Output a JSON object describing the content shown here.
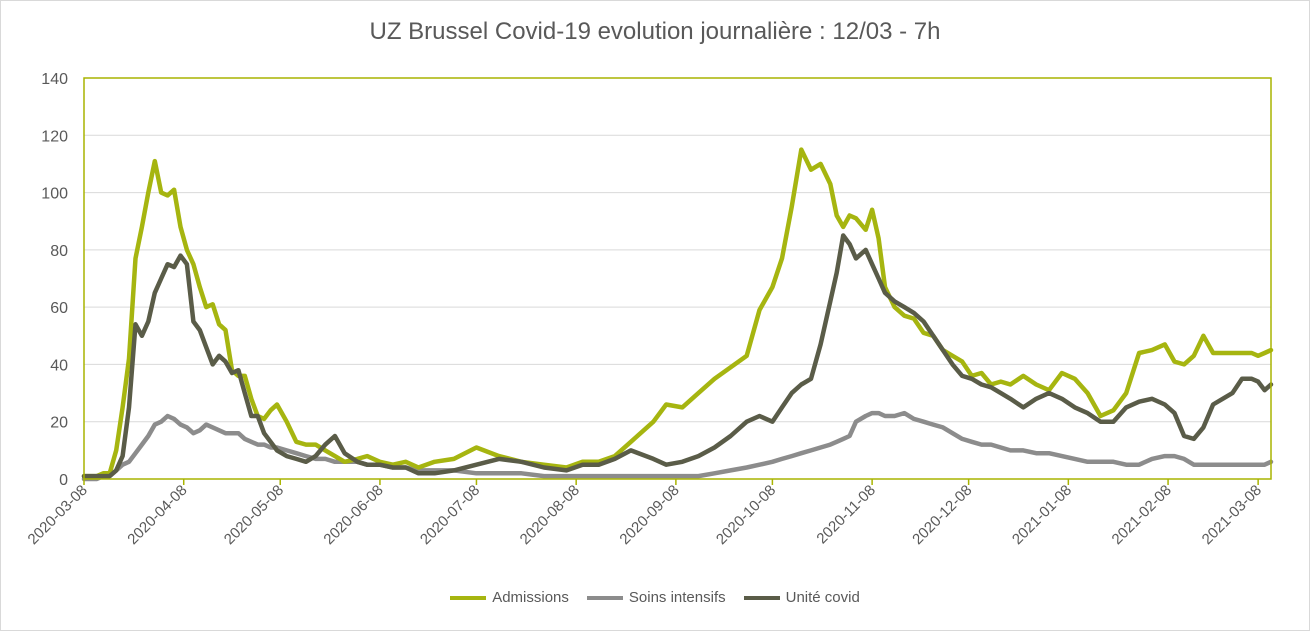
{
  "chart_data": {
    "type": "line",
    "title": "UZ Brussel Covid-19 evolution journalière : 12/03 - 7h",
    "xlabel": "",
    "ylabel": "",
    "ylim": [
      0,
      140
    ],
    "y_ticks": [
      0,
      20,
      40,
      60,
      80,
      100,
      120,
      140
    ],
    "xlim": [
      "2020-03-08",
      "2021-03-12"
    ],
    "x_ticks": [
      "2020-03-08",
      "2020-04-08",
      "2020-05-08",
      "2020-06-08",
      "2020-07-08",
      "2020-08-08",
      "2020-09-08",
      "2020-10-08",
      "2020-11-08",
      "2020-12-08",
      "2021-01-08",
      "2021-02-08",
      "2021-03-08"
    ],
    "grid": "horizontal",
    "legend_position": "bottom",
    "axis_color": "#a9b400",
    "series": [
      {
        "name": "Admissions",
        "color": "#a6b510",
        "x": [
          "2020-03-08",
          "2020-03-12",
          "2020-03-14",
          "2020-03-16",
          "2020-03-18",
          "2020-03-20",
          "2020-03-22",
          "2020-03-24",
          "2020-03-26",
          "2020-03-28",
          "2020-03-30",
          "2020-04-01",
          "2020-04-03",
          "2020-04-05",
          "2020-04-07",
          "2020-04-09",
          "2020-04-11",
          "2020-04-13",
          "2020-04-15",
          "2020-04-17",
          "2020-04-19",
          "2020-04-21",
          "2020-04-23",
          "2020-04-25",
          "2020-04-27",
          "2020-04-29",
          "2020-05-01",
          "2020-05-03",
          "2020-05-05",
          "2020-05-07",
          "2020-05-10",
          "2020-05-13",
          "2020-05-16",
          "2020-05-19",
          "2020-05-22",
          "2020-05-25",
          "2020-05-28",
          "2020-06-01",
          "2020-06-04",
          "2020-06-08",
          "2020-06-12",
          "2020-06-16",
          "2020-06-20",
          "2020-06-25",
          "2020-07-01",
          "2020-07-08",
          "2020-07-15",
          "2020-07-22",
          "2020-07-29",
          "2020-08-05",
          "2020-08-10",
          "2020-08-15",
          "2020-08-20",
          "2020-08-25",
          "2020-09-01",
          "2020-09-05",
          "2020-09-10",
          "2020-09-15",
          "2020-09-20",
          "2020-09-25",
          "2020-09-30",
          "2020-10-04",
          "2020-10-08",
          "2020-10-11",
          "2020-10-14",
          "2020-10-17",
          "2020-10-20",
          "2020-10-23",
          "2020-10-26",
          "2020-10-28",
          "2020-10-30",
          "2020-11-01",
          "2020-11-03",
          "2020-11-06",
          "2020-11-08",
          "2020-11-10",
          "2020-11-12",
          "2020-11-15",
          "2020-11-18",
          "2020-11-21",
          "2020-11-24",
          "2020-11-27",
          "2020-11-30",
          "2020-12-03",
          "2020-12-06",
          "2020-12-09",
          "2020-12-12",
          "2020-12-15",
          "2020-12-18",
          "2020-12-21",
          "2020-12-25",
          "2020-12-29",
          "2021-01-02",
          "2021-01-06",
          "2021-01-10",
          "2021-01-14",
          "2021-01-18",
          "2021-01-22",
          "2021-01-26",
          "2021-01-30",
          "2021-02-03",
          "2021-02-07",
          "2021-02-10",
          "2021-02-13",
          "2021-02-16",
          "2021-02-19",
          "2021-02-22",
          "2021-02-25",
          "2021-02-28",
          "2021-03-03",
          "2021-03-06",
          "2021-03-08",
          "2021-03-10",
          "2021-03-12"
        ],
        "values": [
          1,
          1,
          2,
          2,
          10,
          25,
          42,
          77,
          88,
          100,
          111,
          100,
          99,
          101,
          88,
          80,
          75,
          67,
          60,
          61,
          54,
          52,
          38,
          36,
          36,
          28,
          22,
          21,
          24,
          26,
          20,
          13,
          12,
          12,
          10,
          8,
          6,
          7,
          8,
          6,
          5,
          6,
          4,
          6,
          7,
          11,
          8,
          6,
          5,
          4,
          6,
          6,
          8,
          13,
          20,
          26,
          25,
          30,
          35,
          39,
          43,
          59,
          67,
          77,
          95,
          115,
          108,
          110,
          103,
          92,
          88,
          92,
          91,
          87,
          94,
          84,
          67,
          60,
          57,
          56,
          51,
          50,
          45,
          43,
          41,
          36,
          37,
          33,
          34,
          33,
          36,
          33,
          31,
          37,
          35,
          30,
          22,
          24,
          30,
          44,
          45,
          47,
          41,
          40,
          43,
          50,
          44,
          44,
          44,
          44,
          44,
          43,
          44,
          45
        ]
      },
      {
        "name": "Soins intensifs",
        "color": "#8c8c8c",
        "x": [
          "2020-03-08",
          "2020-03-12",
          "2020-03-14",
          "2020-03-16",
          "2020-03-18",
          "2020-03-20",
          "2020-03-22",
          "2020-03-24",
          "2020-03-26",
          "2020-03-28",
          "2020-03-30",
          "2020-04-01",
          "2020-04-03",
          "2020-04-05",
          "2020-04-07",
          "2020-04-09",
          "2020-04-11",
          "2020-04-13",
          "2020-04-15",
          "2020-04-17",
          "2020-04-19",
          "2020-04-21",
          "2020-04-23",
          "2020-04-25",
          "2020-04-27",
          "2020-04-29",
          "2020-05-01",
          "2020-05-03",
          "2020-05-05",
          "2020-05-07",
          "2020-05-10",
          "2020-05-13",
          "2020-05-16",
          "2020-05-19",
          "2020-05-22",
          "2020-05-25",
          "2020-05-28",
          "2020-06-01",
          "2020-06-04",
          "2020-06-08",
          "2020-06-12",
          "2020-06-16",
          "2020-06-20",
          "2020-06-25",
          "2020-07-01",
          "2020-07-08",
          "2020-07-15",
          "2020-07-22",
          "2020-07-29",
          "2020-08-05",
          "2020-08-10",
          "2020-08-15",
          "2020-08-20",
          "2020-08-25",
          "2020-09-01",
          "2020-09-05",
          "2020-09-10",
          "2020-09-15",
          "2020-09-20",
          "2020-09-25",
          "2020-09-30",
          "2020-10-04",
          "2020-10-08",
          "2020-10-11",
          "2020-10-14",
          "2020-10-17",
          "2020-10-20",
          "2020-10-23",
          "2020-10-26",
          "2020-10-28",
          "2020-10-30",
          "2020-11-01",
          "2020-11-03",
          "2020-11-06",
          "2020-11-08",
          "2020-11-10",
          "2020-11-12",
          "2020-11-15",
          "2020-11-18",
          "2020-11-21",
          "2020-11-24",
          "2020-11-27",
          "2020-11-30",
          "2020-12-03",
          "2020-12-06",
          "2020-12-09",
          "2020-12-12",
          "2020-12-15",
          "2020-12-18",
          "2020-12-21",
          "2020-12-25",
          "2020-12-29",
          "2021-01-02",
          "2021-01-06",
          "2021-01-10",
          "2021-01-14",
          "2021-01-18",
          "2021-01-22",
          "2021-01-26",
          "2021-01-30",
          "2021-02-03",
          "2021-02-07",
          "2021-02-10",
          "2021-02-13",
          "2021-02-16",
          "2021-02-19",
          "2021-02-22",
          "2021-02-25",
          "2021-02-28",
          "2021-03-03",
          "2021-03-06",
          "2021-03-08",
          "2021-03-10",
          "2021-03-12"
        ],
        "values": [
          0,
          0,
          1,
          1,
          3,
          5,
          6,
          9,
          12,
          15,
          19,
          20,
          22,
          21,
          19,
          18,
          16,
          17,
          19,
          18,
          17,
          16,
          16,
          16,
          14,
          13,
          12,
          12,
          11,
          11,
          10,
          9,
          8,
          7,
          7,
          6,
          6,
          6,
          5,
          5,
          4,
          4,
          3,
          3,
          3,
          2,
          2,
          2,
          1,
          1,
          1,
          1,
          1,
          1,
          1,
          1,
          1,
          1,
          2,
          3,
          4,
          5,
          6,
          7,
          8,
          9,
          10,
          11,
          12,
          13,
          14,
          15,
          20,
          22,
          23,
          23,
          22,
          22,
          23,
          21,
          20,
          19,
          18,
          16,
          14,
          13,
          12,
          12,
          11,
          10,
          10,
          9,
          9,
          8,
          7,
          6,
          6,
          6,
          5,
          5,
          7,
          8,
          8,
          7,
          5,
          5,
          5,
          5,
          5,
          5,
          5,
          5,
          5,
          6
        ]
      },
      {
        "name": "Unité covid",
        "color": "#5a5c48",
        "x": [
          "2020-03-08",
          "2020-03-12",
          "2020-03-14",
          "2020-03-16",
          "2020-03-18",
          "2020-03-20",
          "2020-03-22",
          "2020-03-24",
          "2020-03-26",
          "2020-03-28",
          "2020-03-30",
          "2020-04-01",
          "2020-04-03",
          "2020-04-05",
          "2020-04-07",
          "2020-04-09",
          "2020-04-11",
          "2020-04-13",
          "2020-04-15",
          "2020-04-17",
          "2020-04-19",
          "2020-04-21",
          "2020-04-23",
          "2020-04-25",
          "2020-04-27",
          "2020-04-29",
          "2020-05-01",
          "2020-05-03",
          "2020-05-05",
          "2020-05-07",
          "2020-05-10",
          "2020-05-13",
          "2020-05-16",
          "2020-05-19",
          "2020-05-22",
          "2020-05-25",
          "2020-05-28",
          "2020-06-01",
          "2020-06-04",
          "2020-06-08",
          "2020-06-12",
          "2020-06-16",
          "2020-06-20",
          "2020-06-25",
          "2020-07-01",
          "2020-07-08",
          "2020-07-15",
          "2020-07-22",
          "2020-07-29",
          "2020-08-05",
          "2020-08-10",
          "2020-08-15",
          "2020-08-20",
          "2020-08-25",
          "2020-09-01",
          "2020-09-05",
          "2020-09-10",
          "2020-09-15",
          "2020-09-20",
          "2020-09-25",
          "2020-09-30",
          "2020-10-04",
          "2020-10-08",
          "2020-10-11",
          "2020-10-14",
          "2020-10-17",
          "2020-10-20",
          "2020-10-23",
          "2020-10-26",
          "2020-10-28",
          "2020-10-30",
          "2020-11-01",
          "2020-11-03",
          "2020-11-06",
          "2020-11-08",
          "2020-11-10",
          "2020-11-12",
          "2020-11-15",
          "2020-11-18",
          "2020-11-21",
          "2020-11-24",
          "2020-11-27",
          "2020-11-30",
          "2020-12-03",
          "2020-12-06",
          "2020-12-09",
          "2020-12-12",
          "2020-12-15",
          "2020-12-18",
          "2020-12-21",
          "2020-12-25",
          "2020-12-29",
          "2021-01-02",
          "2021-01-06",
          "2021-01-10",
          "2021-01-14",
          "2021-01-18",
          "2021-01-22",
          "2021-01-26",
          "2021-01-30",
          "2021-02-03",
          "2021-02-07",
          "2021-02-10",
          "2021-02-13",
          "2021-02-16",
          "2021-02-19",
          "2021-02-22",
          "2021-02-25",
          "2021-02-28",
          "2021-03-03",
          "2021-03-06",
          "2021-03-08",
          "2021-03-10",
          "2021-03-12"
        ],
        "values": [
          1,
          1,
          1,
          1,
          3,
          8,
          25,
          54,
          50,
          55,
          65,
          70,
          75,
          74,
          78,
          75,
          55,
          52,
          46,
          40,
          43,
          41,
          37,
          38,
          30,
          22,
          22,
          16,
          13,
          10,
          8,
          7,
          6,
          8,
          12,
          15,
          9,
          6,
          5,
          5,
          4,
          4,
          2,
          2,
          3,
          5,
          7,
          6,
          4,
          3,
          5,
          5,
          7,
          10,
          7,
          5,
          6,
          8,
          11,
          15,
          20,
          22,
          20,
          25,
          30,
          33,
          35,
          47,
          62,
          72,
          85,
          82,
          77,
          80,
          75,
          70,
          65,
          62,
          60,
          58,
          55,
          50,
          45,
          40,
          36,
          35,
          33,
          32,
          30,
          28,
          25,
          28,
          30,
          28,
          25,
          23,
          20,
          20,
          25,
          27,
          28,
          26,
          23,
          15,
          14,
          18,
          26,
          28,
          30,
          35,
          35,
          34,
          31,
          33
        ]
      }
    ]
  }
}
